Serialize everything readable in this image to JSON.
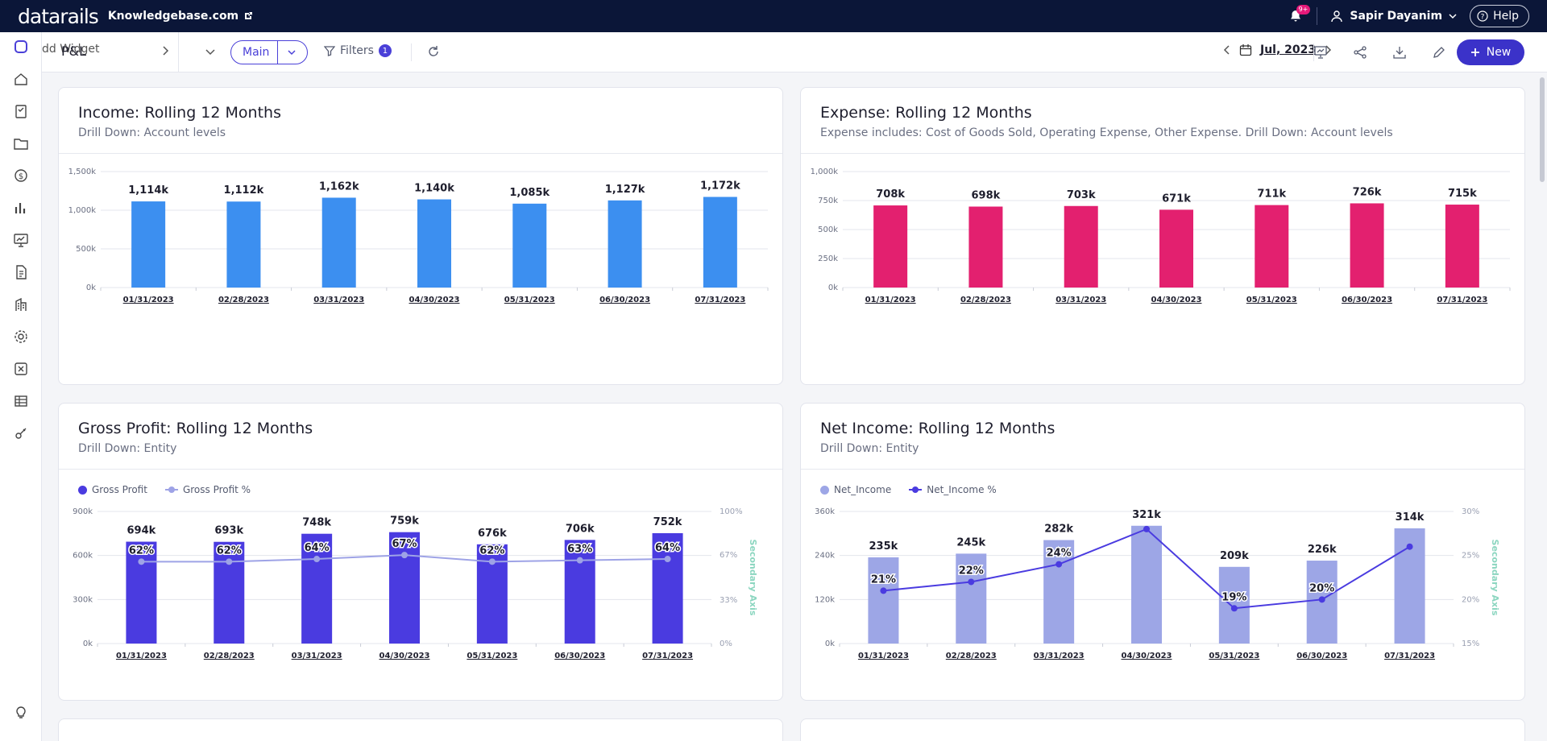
{
  "app": {
    "logo": "datarails",
    "workspace": "Knowledgebase.com",
    "notif_count": "9+",
    "user": "Sapir Dayanim",
    "help": "Help"
  },
  "toolbar": {
    "ghost_text": "dd Widget",
    "page_title": "P&L",
    "view": "Main",
    "filters_label": "Filters",
    "filters_count": "1",
    "date": "Jul, 2023",
    "new_label": "New"
  },
  "icons": {
    "rail": [
      "datarails-icon",
      "home-icon",
      "clipboard-icon",
      "folder-icon",
      "dollar-icon",
      "bar-chart-icon",
      "monitor-chart-icon",
      "document-icon",
      "building-icon",
      "gear-icon",
      "excel-icon",
      "table-icon",
      "key-icon",
      "lightbulb-icon"
    ]
  },
  "colors": {
    "income": "#3c8ff0",
    "expense": "#e3206f",
    "gross_profit": "#4a3be0",
    "gross_profit_pct": "#9ea3e6",
    "net_income": "#9da6e6",
    "net_income_pct": "#4a3be0",
    "secondary_axis": "#8cd6c0"
  },
  "chart_data": [
    {
      "id": "income",
      "type": "bar",
      "title": "Income: Rolling 12 Months",
      "subtitle": "Drill Down: Account levels",
      "categories": [
        "01/31/2023",
        "02/28/2023",
        "03/31/2023",
        "04/30/2023",
        "05/31/2023",
        "06/30/2023",
        "07/31/2023"
      ],
      "values": [
        1114,
        1112,
        1162,
        1140,
        1085,
        1127,
        1172
      ],
      "data_labels": [
        "1,114k",
        "1,112k",
        "1,162k",
        "1,140k",
        "1,085k",
        "1,127k",
        "1,172k"
      ],
      "ylim": [
        0,
        1500
      ],
      "yticks": [
        0,
        500,
        1000,
        1500
      ],
      "ytick_labels": [
        "0k",
        "500k",
        "1,000k",
        "1,500k"
      ],
      "grid": true
    },
    {
      "id": "expense",
      "type": "bar",
      "title": "Expense: Rolling 12 Months",
      "subtitle": "Expense includes: Cost of Goods Sold, Operating Expense, Other Expense. Drill Down: Account levels",
      "categories": [
        "01/31/2023",
        "02/28/2023",
        "03/31/2023",
        "04/30/2023",
        "05/31/2023",
        "06/30/2023",
        "07/31/2023"
      ],
      "values": [
        708,
        698,
        703,
        671,
        711,
        726,
        715
      ],
      "data_labels": [
        "708k",
        "698k",
        "703k",
        "671k",
        "711k",
        "726k",
        "715k"
      ],
      "ylim": [
        0,
        1000
      ],
      "yticks": [
        0,
        250,
        500,
        750,
        1000
      ],
      "ytick_labels": [
        "0k",
        "250k",
        "500k",
        "750k",
        "1,000k"
      ],
      "grid": true
    },
    {
      "id": "gross_profit",
      "type": "bar",
      "title": "Gross Profit: Rolling 12 Months",
      "subtitle": "Drill Down: Entity",
      "categories": [
        "01/31/2023",
        "02/28/2023",
        "03/31/2023",
        "04/30/2023",
        "05/31/2023",
        "06/30/2023",
        "07/31/2023"
      ],
      "series": [
        {
          "name": "Gross Profit",
          "type": "bar",
          "values": [
            694,
            693,
            748,
            759,
            676,
            706,
            752
          ],
          "data_labels": [
            "694k",
            "693k",
            "748k",
            "759k",
            "676k",
            "706k",
            "752k"
          ]
        },
        {
          "name": "Gross Profit %",
          "type": "line",
          "axis": "secondary",
          "values": [
            62,
            62,
            64,
            67,
            62,
            63,
            64
          ],
          "data_labels": [
            "62%",
            "62%",
            "64%",
            "67%",
            "62%",
            "63%",
            "64%"
          ]
        }
      ],
      "ylim": [
        0,
        900
      ],
      "yticks": [
        0,
        300,
        600,
        900
      ],
      "ytick_labels": [
        "0k",
        "300k",
        "600k",
        "900k"
      ],
      "y2lim": [
        0,
        100
      ],
      "y2ticks": [
        0,
        33,
        67,
        100
      ],
      "y2tick_labels": [
        "0%",
        "33%",
        "67%",
        "100%"
      ],
      "y2label": "Secondary Axis",
      "legend": "top-left",
      "grid": true
    },
    {
      "id": "net_income",
      "type": "bar",
      "title": "Net Income: Rolling 12 Months",
      "subtitle": "Drill Down: Entity",
      "categories": [
        "01/31/2023",
        "02/28/2023",
        "03/31/2023",
        "04/30/2023",
        "05/31/2023",
        "06/30/2023",
        "07/31/2023"
      ],
      "series": [
        {
          "name": "Net_Income",
          "type": "bar",
          "values": [
            235,
            245,
            282,
            321,
            209,
            226,
            314
          ],
          "data_labels": [
            "235k",
            "245k",
            "282k",
            "321k",
            "209k",
            "226k",
            "314k"
          ]
        },
        {
          "name": "Net_Income %",
          "type": "line",
          "axis": "secondary",
          "values": [
            21,
            22,
            24,
            28,
            19,
            20,
            26
          ],
          "data_labels": [
            "21%",
            "22%",
            "24%",
            "",
            "19%",
            "20%",
            ""
          ]
        }
      ],
      "ylim": [
        0,
        360
      ],
      "yticks": [
        0,
        120,
        240,
        360
      ],
      "ytick_labels": [
        "0k",
        "120k",
        "240k",
        "360k"
      ],
      "y2lim": [
        15,
        30
      ],
      "y2ticks": [
        15,
        20,
        25,
        30
      ],
      "y2tick_labels": [
        "15%",
        "20%",
        "25%",
        "30%"
      ],
      "y2label": "Secondary Axis",
      "legend": "top-left",
      "grid": true
    }
  ]
}
